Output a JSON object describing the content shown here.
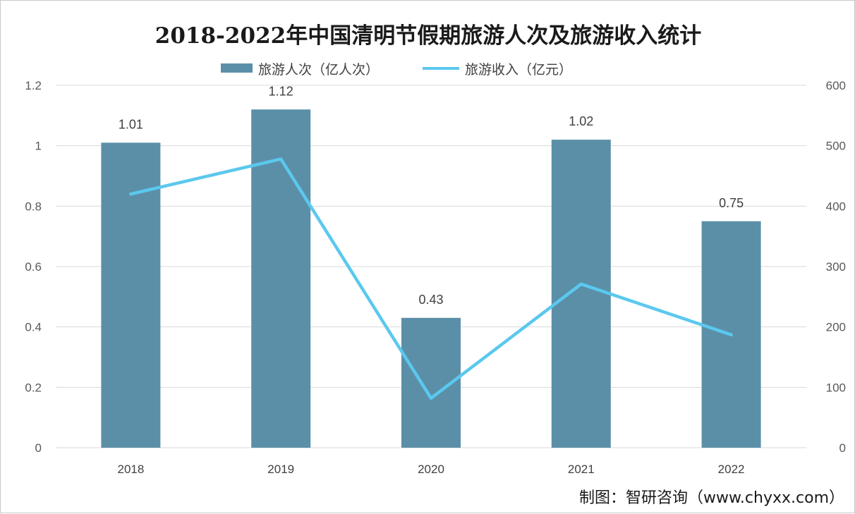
{
  "chart_data": {
    "type": "bar+line",
    "title": "2018-2022年中国清明节假期旅游人次及旅游收入统计",
    "categories": [
      "2018",
      "2019",
      "2020",
      "2021",
      "2022"
    ],
    "series": [
      {
        "name": "旅游人次（亿人次）",
        "type": "bar",
        "axis": "left",
        "color": "#5b8fa8",
        "values": [
          1.01,
          1.12,
          0.43,
          1.02,
          0.75
        ],
        "labels": [
          "1.01",
          "1.12",
          "0.43",
          "1.02",
          "0.75"
        ]
      },
      {
        "name": "旅游收入（亿元）",
        "type": "line",
        "axis": "right",
        "color": "#5bc8ee",
        "values": [
          420,
          478,
          82,
          271,
          187
        ]
      }
    ],
    "y_left": {
      "range": [
        0,
        1.2
      ],
      "ticks": [
        "0",
        "0.2",
        "0.4",
        "0.6",
        "0.8",
        "1",
        "1.2"
      ]
    },
    "y_right": {
      "range": [
        0,
        600
      ],
      "ticks": [
        "0",
        "100",
        "200",
        "300",
        "400",
        "500",
        "600"
      ]
    },
    "grid": true,
    "legend_position": "top-center"
  },
  "source": "制图：智研咨询（www.chyxx.com）"
}
